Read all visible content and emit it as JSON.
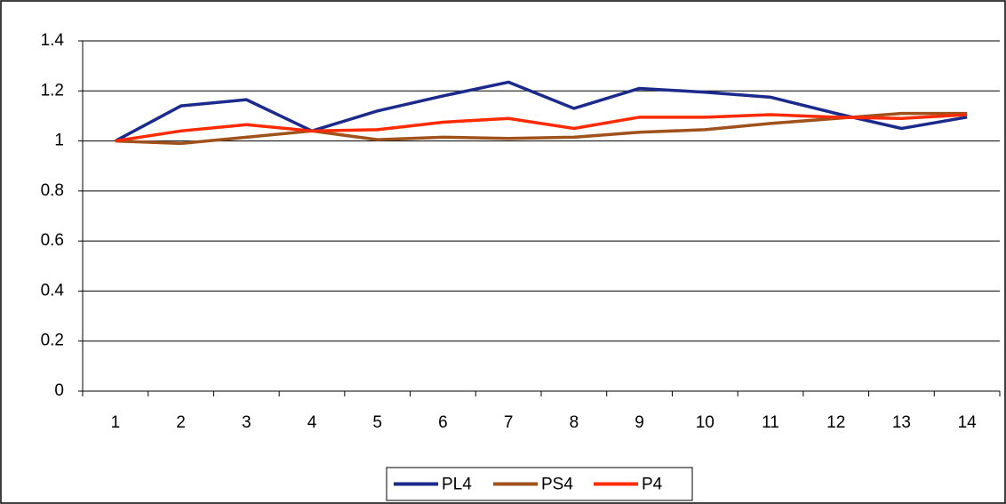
{
  "chart_data": {
    "type": "line",
    "categories": [
      "1",
      "2",
      "3",
      "4",
      "5",
      "6",
      "7",
      "8",
      "9",
      "10",
      "11",
      "12",
      "13",
      "14"
    ],
    "series": [
      {
        "name": "PL4",
        "color": "#1c2a8c",
        "values": [
          1,
          1.14,
          1.165,
          1.04,
          1.12,
          1.18,
          1.235,
          1.13,
          1.21,
          1.195,
          1.175,
          1.11,
          1.05,
          1.095
        ]
      },
      {
        "name": "PS4",
        "color": "#a0521c",
        "values": [
          1,
          0.99,
          1.015,
          1.04,
          1.005,
          1.015,
          1.01,
          1.015,
          1.035,
          1.045,
          1.07,
          1.09,
          1.11,
          1.11
        ]
      },
      {
        "name": "P4",
        "color": "#ff2a00",
        "values": [
          1,
          1.04,
          1.065,
          1.04,
          1.045,
          1.075,
          1.09,
          1.05,
          1.095,
          1.095,
          1.105,
          1.095,
          1.09,
          1.105
        ]
      }
    ],
    "ylim": [
      0,
      1.4
    ],
    "yticks": [
      0,
      0.2,
      0.4,
      0.6,
      0.8,
      1,
      1.2,
      1.4
    ],
    "grid": true,
    "legend": "bottom"
  }
}
